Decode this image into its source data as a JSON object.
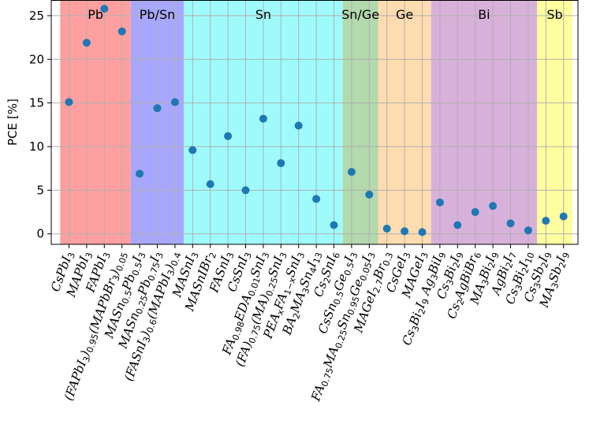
{
  "chart_data": {
    "type": "scatter",
    "title": "",
    "xlabel": "",
    "ylabel": "PCE [%]",
    "ylim": [
      -1.2,
      26.8
    ],
    "yticks": [
      0,
      5,
      10,
      15,
      20,
      25
    ],
    "grid": true,
    "marker_color": "#1f77b4",
    "categories": [
      "CsPbI_3",
      "MAPbI_3",
      "FAPbI_3",
      "(FAPbI_3)_0.95(MAPbBr_3)_0.05",
      "MASn_0.5Pb_0.5I_3",
      "MASn_0.25Pb_0.75I_3",
      "(FASnI_3)_0.6(MAPbI_3)_0.4",
      "MASnI_3",
      "MASnIBr_2",
      "FASnI_3",
      "CsSnI_3",
      "FA_0.98EDA_0.01SnI_3",
      "(FA)_0.75(MA)_0.25SnI_3",
      "PEA_xFA_1-xSnI_3",
      "BA_2MA_3Sn_4I_13",
      "Cs_2SnI_6",
      "CsSn_0.5Ge_0.5I_3",
      "FA_0.75MA_0.25Sn_0.95Ge_0.05I_3",
      "MAGeI_2.7Br_0.3",
      "CsGeI_3",
      "MAGeI_3",
      "Cs_3Bi_2I_9 Ag_3BiI_9",
      "Cs_3Bi_2I_9",
      "Cs_2AgBiBr_6",
      "MA_3Bi_2I_9",
      "AgBi_2I_7",
      "Cs_3Bi_2I_10",
      "Cs_3Sb_2I_9",
      "MA_3Sb_2I_9"
    ],
    "values": [
      15.1,
      21.9,
      25.8,
      23.2,
      6.9,
      14.4,
      15.1,
      9.6,
      5.7,
      11.2,
      5.0,
      13.2,
      8.1,
      12.4,
      4.0,
      1.0,
      7.1,
      4.5,
      0.6,
      0.3,
      0.2,
      3.6,
      1.0,
      2.5,
      3.2,
      1.2,
      0.4,
      1.5,
      2.0
    ],
    "groups": [
      {
        "label": "Pb",
        "start": 0,
        "end": 3,
        "color": "#ff9f9f"
      },
      {
        "label": "Pb/Sn",
        "start": 4,
        "end": 6,
        "color": "#a7a7ff"
      },
      {
        "label": "Sn",
        "start": 7,
        "end": 15,
        "color": "#9ffbfb"
      },
      {
        "label": "Sn/Ge",
        "start": 16,
        "end": 17,
        "color": "#b3d9ad"
      },
      {
        "label": "Ge",
        "start": 18,
        "end": 20,
        "color": "#ffdcb0"
      },
      {
        "label": "Bi",
        "start": 21,
        "end": 26,
        "color": "#d8b1da"
      },
      {
        "label": "Sb",
        "start": 27,
        "end": 28,
        "color": "#ffff9f"
      }
    ]
  }
}
